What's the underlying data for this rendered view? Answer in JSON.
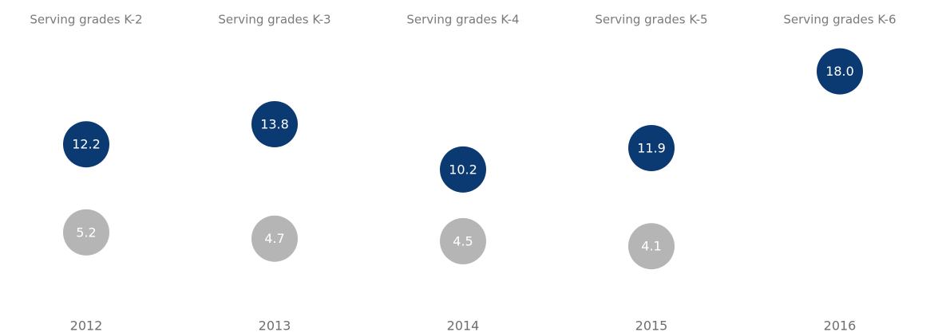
{
  "chart_data": {
    "type": "dot",
    "headers": [
      "Serving grades K-2",
      "Serving grades K-3",
      "Serving grades K-4",
      "Serving grades K-5",
      "Serving grades K-6"
    ],
    "categories": [
      "2012",
      "2013",
      "2014",
      "2015",
      "2016"
    ],
    "series": [
      {
        "color": "#0b3a73",
        "values": [
          12.2,
          13.8,
          10.2,
          11.9,
          18.0
        ],
        "value_labels": [
          "12.2",
          "13.8",
          "10.2",
          "11.9",
          "18.0"
        ]
      },
      {
        "color": "#b5b5b5",
        "values": [
          5.2,
          4.7,
          4.5,
          4.1,
          null
        ],
        "value_labels": [
          "5.2",
          "4.7",
          "4.5",
          "4.1",
          null
        ]
      }
    ],
    "ylim": [
      0,
      20
    ]
  }
}
